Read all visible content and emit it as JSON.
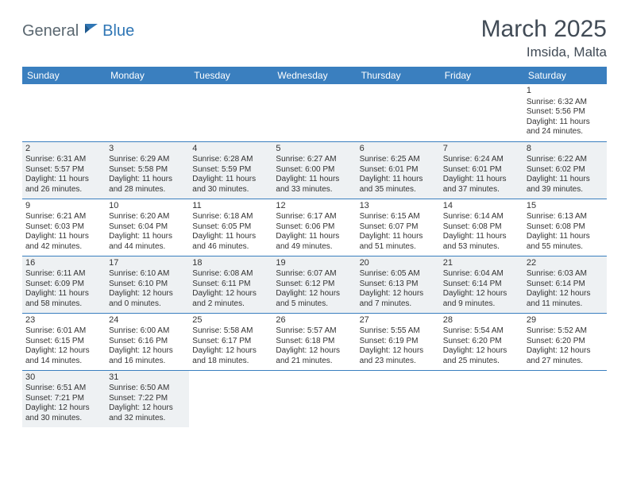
{
  "logo": {
    "part1": "General",
    "part2": "Blue"
  },
  "title": "March 2025",
  "location": "Imsida, Malta",
  "colors": {
    "header_bg": "#3a7fbf",
    "header_text": "#ffffff",
    "row_odd_bg": "#eef1f3",
    "row_even_bg": "#ffffff",
    "border": "#3a7fbf",
    "logo_gray": "#5a6770",
    "logo_blue": "#2f76b5",
    "title_color": "#414b56"
  },
  "weekdays": [
    "Sunday",
    "Monday",
    "Tuesday",
    "Wednesday",
    "Thursday",
    "Friday",
    "Saturday"
  ],
  "weeks": [
    [
      null,
      null,
      null,
      null,
      null,
      null,
      {
        "n": "1",
        "sr": "6:32 AM",
        "ss": "5:56 PM",
        "dl": "11 hours and 24 minutes."
      }
    ],
    [
      {
        "n": "2",
        "sr": "6:31 AM",
        "ss": "5:57 PM",
        "dl": "11 hours and 26 minutes."
      },
      {
        "n": "3",
        "sr": "6:29 AM",
        "ss": "5:58 PM",
        "dl": "11 hours and 28 minutes."
      },
      {
        "n": "4",
        "sr": "6:28 AM",
        "ss": "5:59 PM",
        "dl": "11 hours and 30 minutes."
      },
      {
        "n": "5",
        "sr": "6:27 AM",
        "ss": "6:00 PM",
        "dl": "11 hours and 33 minutes."
      },
      {
        "n": "6",
        "sr": "6:25 AM",
        "ss": "6:01 PM",
        "dl": "11 hours and 35 minutes."
      },
      {
        "n": "7",
        "sr": "6:24 AM",
        "ss": "6:01 PM",
        "dl": "11 hours and 37 minutes."
      },
      {
        "n": "8",
        "sr": "6:22 AM",
        "ss": "6:02 PM",
        "dl": "11 hours and 39 minutes."
      }
    ],
    [
      {
        "n": "9",
        "sr": "6:21 AM",
        "ss": "6:03 PM",
        "dl": "11 hours and 42 minutes."
      },
      {
        "n": "10",
        "sr": "6:20 AM",
        "ss": "6:04 PM",
        "dl": "11 hours and 44 minutes."
      },
      {
        "n": "11",
        "sr": "6:18 AM",
        "ss": "6:05 PM",
        "dl": "11 hours and 46 minutes."
      },
      {
        "n": "12",
        "sr": "6:17 AM",
        "ss": "6:06 PM",
        "dl": "11 hours and 49 minutes."
      },
      {
        "n": "13",
        "sr": "6:15 AM",
        "ss": "6:07 PM",
        "dl": "11 hours and 51 minutes."
      },
      {
        "n": "14",
        "sr": "6:14 AM",
        "ss": "6:08 PM",
        "dl": "11 hours and 53 minutes."
      },
      {
        "n": "15",
        "sr": "6:13 AM",
        "ss": "6:08 PM",
        "dl": "11 hours and 55 minutes."
      }
    ],
    [
      {
        "n": "16",
        "sr": "6:11 AM",
        "ss": "6:09 PM",
        "dl": "11 hours and 58 minutes."
      },
      {
        "n": "17",
        "sr": "6:10 AM",
        "ss": "6:10 PM",
        "dl": "12 hours and 0 minutes."
      },
      {
        "n": "18",
        "sr": "6:08 AM",
        "ss": "6:11 PM",
        "dl": "12 hours and 2 minutes."
      },
      {
        "n": "19",
        "sr": "6:07 AM",
        "ss": "6:12 PM",
        "dl": "12 hours and 5 minutes."
      },
      {
        "n": "20",
        "sr": "6:05 AM",
        "ss": "6:13 PM",
        "dl": "12 hours and 7 minutes."
      },
      {
        "n": "21",
        "sr": "6:04 AM",
        "ss": "6:14 PM",
        "dl": "12 hours and 9 minutes."
      },
      {
        "n": "22",
        "sr": "6:03 AM",
        "ss": "6:14 PM",
        "dl": "12 hours and 11 minutes."
      }
    ],
    [
      {
        "n": "23",
        "sr": "6:01 AM",
        "ss": "6:15 PM",
        "dl": "12 hours and 14 minutes."
      },
      {
        "n": "24",
        "sr": "6:00 AM",
        "ss": "6:16 PM",
        "dl": "12 hours and 16 minutes."
      },
      {
        "n": "25",
        "sr": "5:58 AM",
        "ss": "6:17 PM",
        "dl": "12 hours and 18 minutes."
      },
      {
        "n": "26",
        "sr": "5:57 AM",
        "ss": "6:18 PM",
        "dl": "12 hours and 21 minutes."
      },
      {
        "n": "27",
        "sr": "5:55 AM",
        "ss": "6:19 PM",
        "dl": "12 hours and 23 minutes."
      },
      {
        "n": "28",
        "sr": "5:54 AM",
        "ss": "6:20 PM",
        "dl": "12 hours and 25 minutes."
      },
      {
        "n": "29",
        "sr": "5:52 AM",
        "ss": "6:20 PM",
        "dl": "12 hours and 27 minutes."
      }
    ],
    [
      {
        "n": "30",
        "sr": "6:51 AM",
        "ss": "7:21 PM",
        "dl": "12 hours and 30 minutes."
      },
      {
        "n": "31",
        "sr": "6:50 AM",
        "ss": "7:22 PM",
        "dl": "12 hours and 32 minutes."
      },
      null,
      null,
      null,
      null,
      null
    ]
  ],
  "labels": {
    "sunrise": "Sunrise:",
    "sunset": "Sunset:",
    "daylight": "Daylight:"
  }
}
